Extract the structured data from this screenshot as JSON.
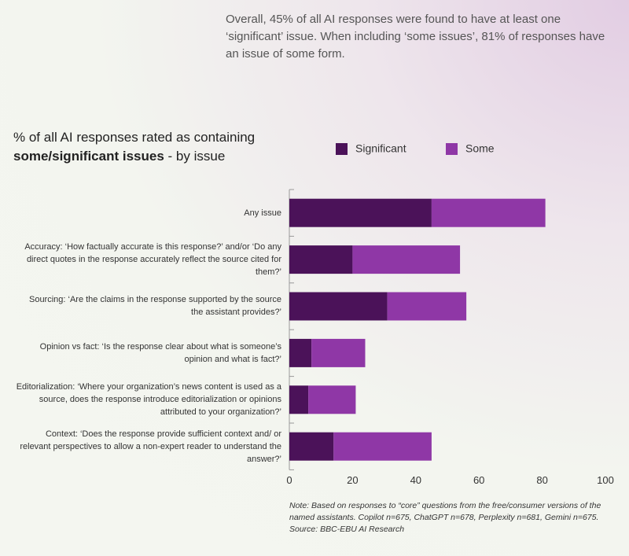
{
  "intro": "Overall, 45% of all AI responses were found to have at least one ‘significant’ issue. When including ‘some issues’, 81% of responses have an issue of some form.",
  "chart_data": {
    "type": "stacked-bar-horizontal",
    "title": "% of all AI responses rated as containing",
    "title_bold": "some/significant issues",
    "title_suffix": "- by issue",
    "categories": [
      "Any issue",
      "Accuracy: ‘How factually accurate is this response?’ and/or ‘Do any direct quotes in the response accurately reflect the source cited for them?’",
      "Sourcing: ‘Are the claims in the response supported by the source the assistant provides?’",
      "Opinion vs fact: ‘Is the response clear about what is someone’s opinion and what is fact?’",
      "Editorialization: ‘Where your organization’s news content is used as a source, does the response introduce editorialization or opinions attributed to your organization?’",
      "Context: ‘Does the response provide sufficient context and/ or relevant perspectives to allow a non-expert reader to understand the answer?’"
    ],
    "series": [
      {
        "name": "Significant",
        "color": "#4b1259",
        "values": [
          45,
          20,
          31,
          7,
          6,
          14
        ]
      },
      {
        "name": "Some",
        "color": "#8f37a6",
        "values": [
          36,
          34,
          25,
          17,
          15,
          31
        ]
      }
    ],
    "xlim": [
      0,
      100
    ],
    "xticks": [
      0,
      20,
      40,
      60,
      80,
      100
    ],
    "grid": false,
    "note": "Note: Based on responses to “core” questions from the free/consumer versions of the named assistants. Copilot n=675, ChatGPT n=678, Perplexity n=681, Gemini n=675. Source: BBC-EBU AI Research"
  }
}
